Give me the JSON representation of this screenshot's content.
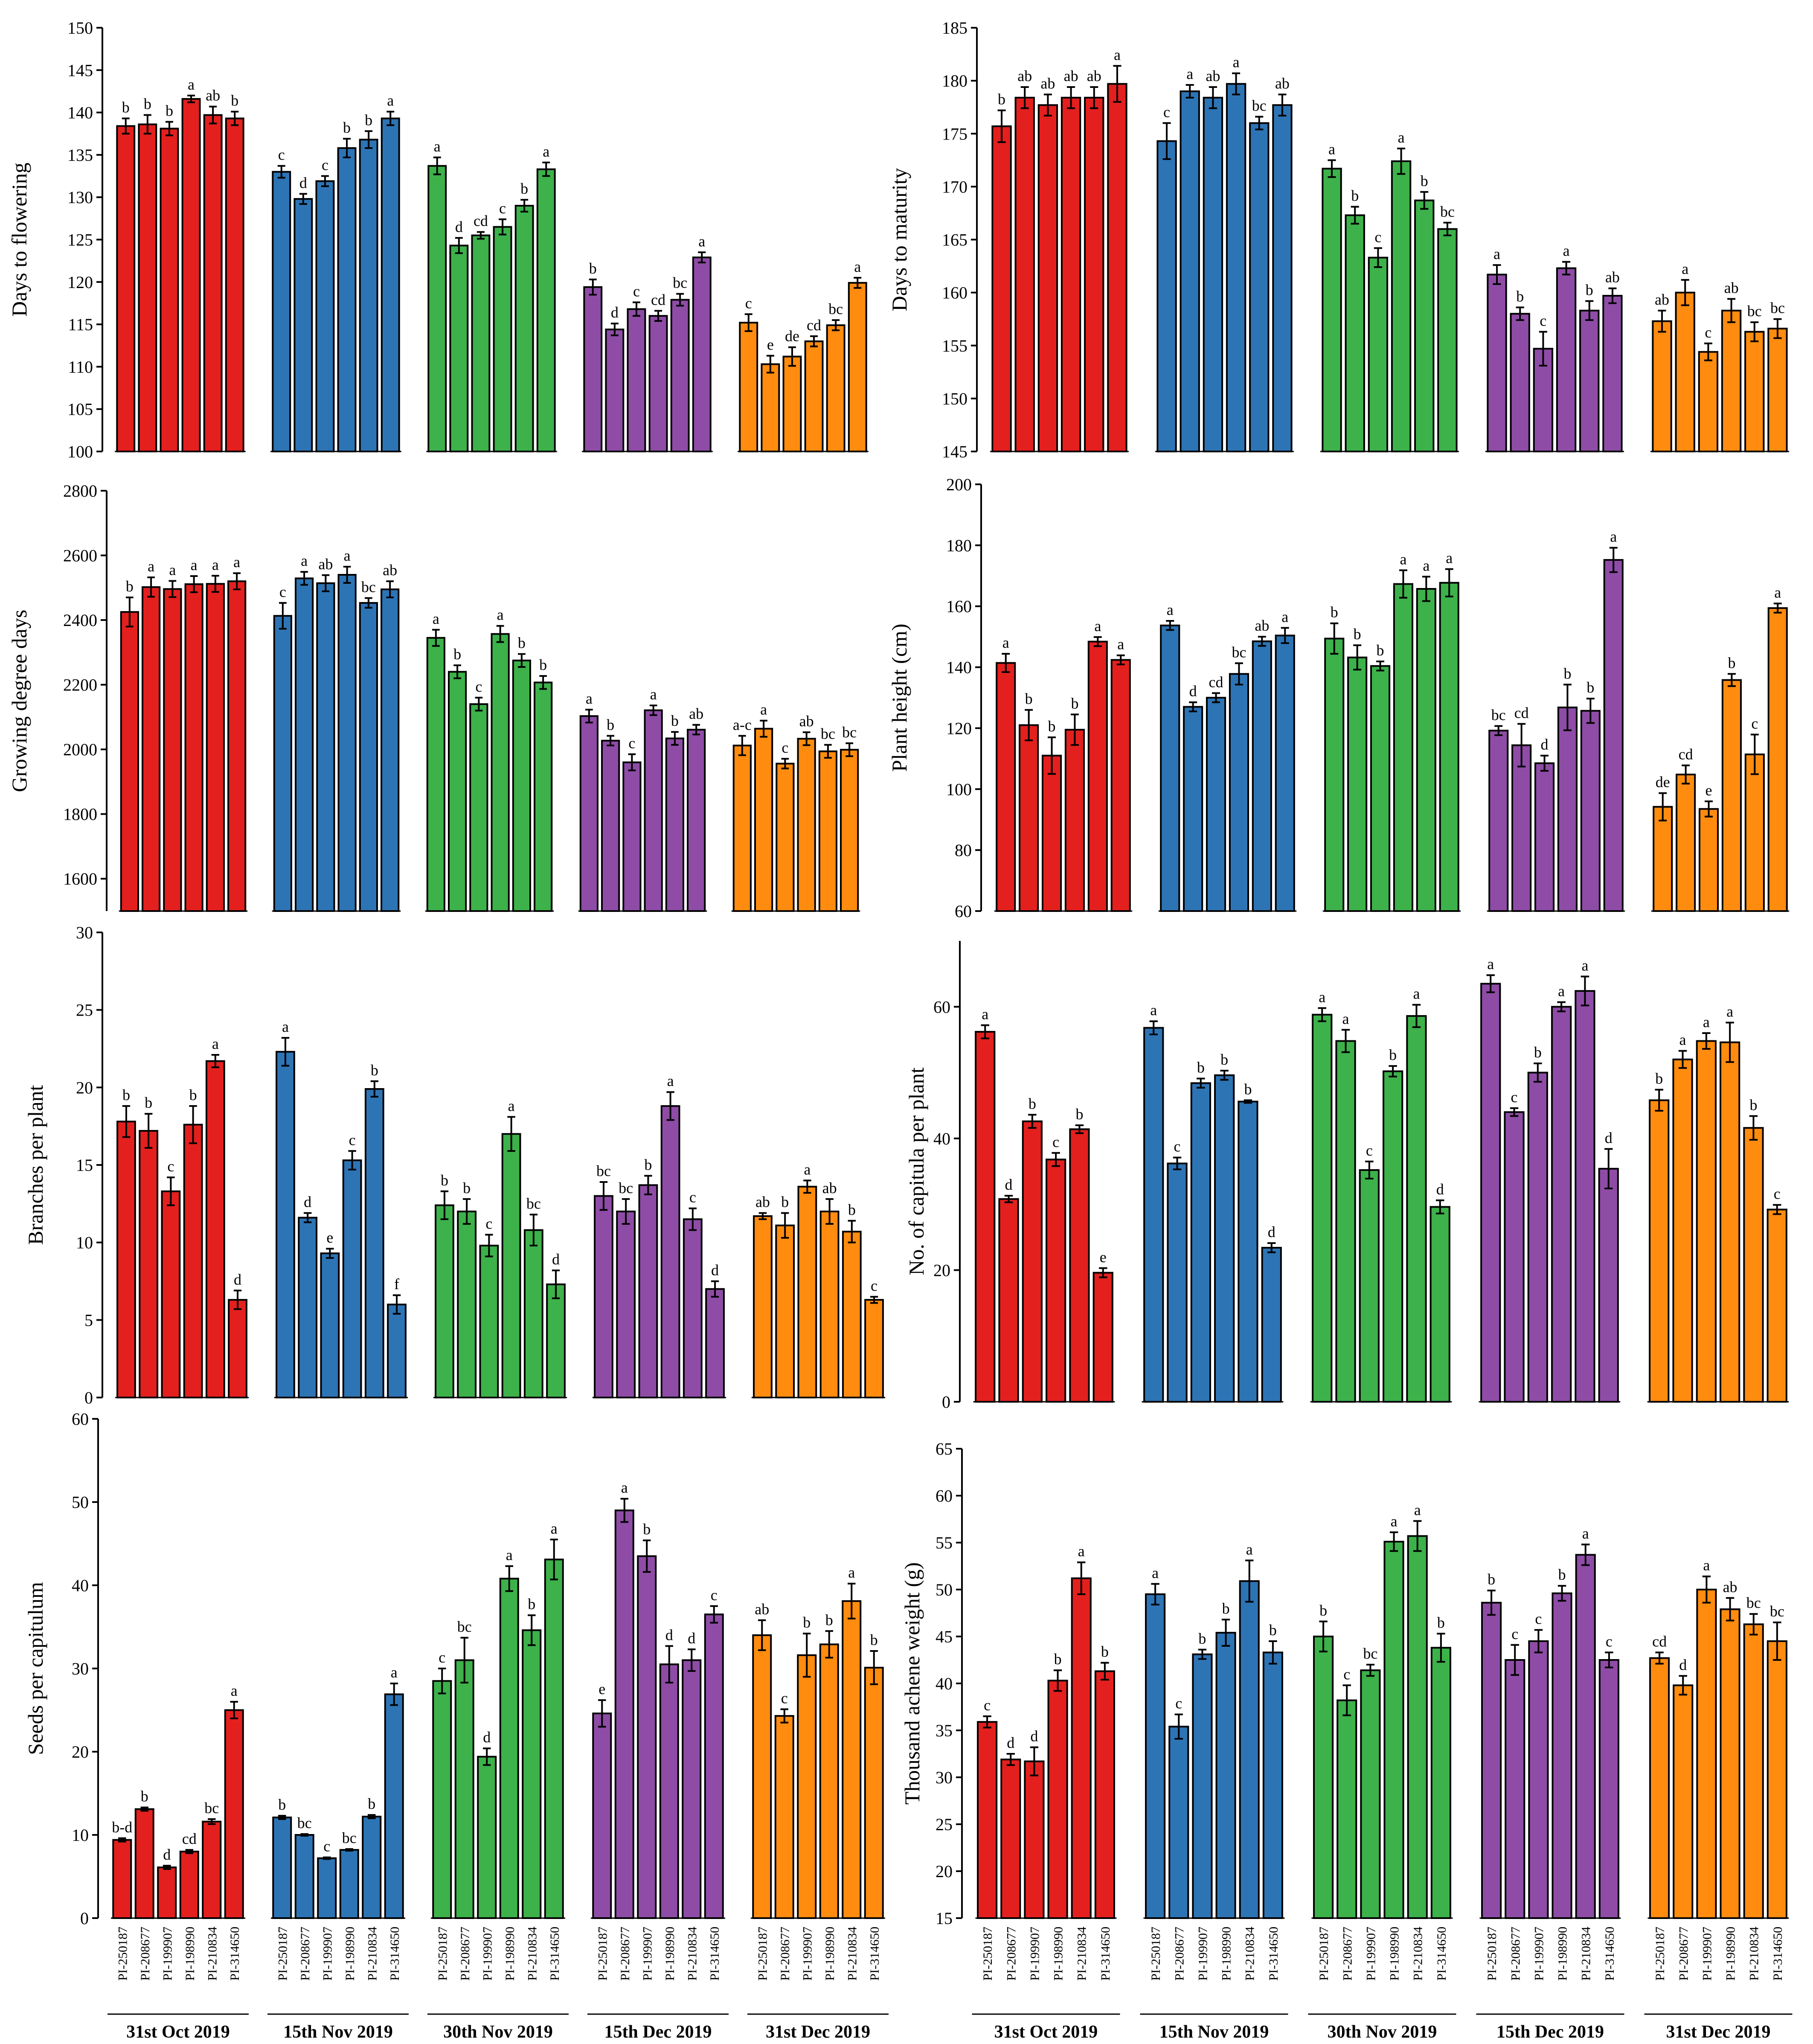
{
  "chart_data": [
    {
      "type": "bar",
      "ylabel": "Days to flowering",
      "ylim": [
        100,
        150
      ],
      "yticks": [
        100,
        105,
        110,
        115,
        120,
        125,
        130,
        135,
        140,
        145,
        150
      ],
      "sowing_dates": [
        "31st Oct 2019",
        "15th Nov 2019",
        "30th Nov 2019",
        "15th Dec 2019",
        "31st Dec 2019"
      ],
      "genotypes": [
        "PI-250187",
        "PI-208677",
        "PI-199907",
        "PI-198990",
        "PI-210834",
        "PI-314650"
      ],
      "values": [
        [
          138.4,
          138.6,
          138.1,
          141.6,
          139.7,
          139.3
        ],
        [
          133.0,
          129.8,
          131.9,
          135.8,
          136.8,
          139.3
        ],
        [
          133.7,
          124.3,
          125.5,
          126.5,
          129.0,
          133.3
        ],
        [
          119.4,
          114.4,
          116.8,
          116.0,
          117.9,
          122.9
        ],
        [
          115.2,
          110.3,
          111.2,
          113.0,
          114.9,
          119.9
        ]
      ],
      "errors": [
        [
          0.9,
          1.1,
          0.8,
          0.4,
          1.0,
          0.8
        ],
        [
          0.7,
          0.6,
          0.6,
          1.1,
          1.0,
          0.8
        ],
        [
          1.0,
          0.9,
          0.4,
          0.9,
          0.7,
          0.8
        ],
        [
          0.9,
          0.7,
          0.8,
          0.6,
          0.7,
          0.6
        ],
        [
          1.0,
          1.0,
          1.1,
          0.6,
          0.6,
          0.6
        ]
      ],
      "letters": [
        [
          "b",
          "b",
          "b",
          "a",
          "ab",
          "b"
        ],
        [
          "c",
          "d",
          "c",
          "b",
          "b",
          "a"
        ],
        [
          "a",
          "d",
          "cd",
          "c",
          "b",
          "a"
        ],
        [
          "b",
          "d",
          "c",
          "cd",
          "bc",
          "a"
        ],
        [
          "c",
          "e",
          "de",
          "cd",
          "bc",
          "a"
        ]
      ]
    },
    {
      "type": "bar",
      "ylabel": "Days to maturity",
      "ylim": [
        145,
        185
      ],
      "yticks": [
        145,
        150,
        155,
        160,
        165,
        170,
        175,
        180,
        185
      ],
      "sowing_dates": [
        "31st Oct 2019",
        "15th Nov 2019",
        "30th Nov 2019",
        "15th Dec 2019",
        "31st Dec 2019"
      ],
      "genotypes": [
        "PI-250187",
        "PI-208677",
        "PI-199907",
        "PI-198990",
        "PI-210834",
        "PI-314650"
      ],
      "values": [
        [
          175.7,
          178.4,
          177.7,
          178.4,
          178.4,
          179.7
        ],
        [
          174.3,
          179.0,
          178.4,
          179.7,
          176.0,
          177.7
        ],
        [
          171.7,
          167.3,
          163.3,
          172.4,
          168.7,
          166.0
        ],
        [
          161.7,
          158.0,
          154.7,
          162.3,
          158.3,
          159.7
        ],
        [
          157.3,
          160.0,
          154.4,
          158.3,
          156.3,
          156.6
        ]
      ],
      "errors": [
        [
          1.5,
          1.0,
          1.0,
          1.0,
          1.0,
          1.7
        ],
        [
          1.7,
          0.6,
          1.0,
          1.0,
          0.6,
          1.0
        ],
        [
          0.8,
          0.8,
          0.9,
          1.2,
          0.8,
          0.6
        ],
        [
          0.9,
          0.6,
          1.6,
          0.6,
          0.9,
          0.7
        ],
        [
          1.0,
          1.2,
          0.8,
          1.1,
          0.9,
          0.9
        ]
      ],
      "letters": [
        [
          "b",
          "ab",
          "ab",
          "ab",
          "ab",
          "a"
        ],
        [
          "c",
          "a",
          "ab",
          "a",
          "bc",
          "ab"
        ],
        [
          "a",
          "b",
          "c",
          "a",
          "b",
          "bc"
        ],
        [
          "a",
          "b",
          "c",
          "a",
          "b",
          "ab"
        ],
        [
          "ab",
          "a",
          "c",
          "ab",
          "bc",
          "bc"
        ]
      ]
    },
    {
      "type": "bar",
      "ylabel": "Growing degree days",
      "ylim": [
        1500,
        2800
      ],
      "yticks": [
        1600,
        1800,
        2000,
        2200,
        2400,
        2600,
        2800
      ],
      "sowing_dates": [
        "31st Oct 2019",
        "15th Nov 2019",
        "30th Nov 2019",
        "15th Dec 2019",
        "31st Dec 2019"
      ],
      "genotypes": [
        "PI-250187",
        "PI-208677",
        "PI-199907",
        "PI-198990",
        "PI-210834",
        "PI-314650"
      ],
      "values": [
        [
          2425,
          2502,
          2496,
          2511,
          2512,
          2520
        ],
        [
          2413,
          2529,
          2514,
          2540,
          2453,
          2495
        ],
        [
          2345,
          2240,
          2140,
          2357,
          2275,
          2207
        ],
        [
          2103,
          2027,
          1960,
          2121,
          2034,
          2061
        ],
        [
          2012,
          2064,
          1956,
          2033,
          1994,
          1999
        ]
      ],
      "errors": [
        [
          45,
          30,
          25,
          25,
          25,
          25
        ],
        [
          40,
          20,
          25,
          25,
          15,
          25
        ],
        [
          25,
          20,
          20,
          25,
          20,
          20
        ],
        [
          20,
          15,
          25,
          15,
          20,
          15
        ],
        [
          30,
          25,
          15,
          20,
          20,
          20
        ]
      ],
      "letters": [
        [
          "b",
          "a",
          "a",
          "a",
          "a",
          "a"
        ],
        [
          "c",
          "a",
          "ab",
          "a",
          "bc",
          "ab"
        ],
        [
          "a",
          "b",
          "c",
          "a",
          "b",
          "b"
        ],
        [
          "a",
          "b",
          "c",
          "a",
          "b",
          "ab"
        ],
        [
          "a-c",
          "a",
          "c",
          "ab",
          "bc",
          "bc"
        ]
      ]
    },
    {
      "type": "bar",
      "ylabel": "Plant height (cm)",
      "ylim": [
        60,
        200
      ],
      "yticks": [
        60,
        80,
        100,
        120,
        140,
        160,
        180,
        200
      ],
      "sowing_dates": [
        "31st Oct 2019",
        "15th Nov 2019",
        "30th Nov 2019",
        "15th Dec 2019",
        "31st Dec 2019"
      ],
      "genotypes": [
        "PI-250187",
        "PI-208677",
        "PI-199907",
        "PI-198990",
        "PI-210834",
        "PI-314650"
      ],
      "values": [
        [
          141.4,
          121.0,
          111.0,
          119.5,
          148.4,
          142.4
        ],
        [
          153.7,
          127.0,
          130.0,
          137.8,
          148.5,
          150.4
        ],
        [
          149.4,
          143.2,
          140.4,
          167.3,
          165.7,
          167.7
        ],
        [
          119.2,
          114.4,
          108.5,
          126.8,
          125.7,
          175.2
        ],
        [
          94.2,
          104.8,
          93.5,
          135.8,
          111.4,
          159.4
        ]
      ],
      "errors": [
        [
          3,
          5,
          6,
          5,
          1.5,
          1.5
        ],
        [
          1.5,
          1.5,
          1.5,
          3.5,
          1.5,
          2.5
        ],
        [
          5,
          4,
          1.5,
          4.5,
          4,
          4.5
        ],
        [
          1.5,
          7,
          2.5,
          7.5,
          4,
          4
        ],
        [
          4.5,
          3,
          2.5,
          2,
          6.5,
          1.5
        ]
      ],
      "letters": [
        [
          "a",
          "b",
          "b",
          "b",
          "a",
          "a"
        ],
        [
          "a",
          "d",
          "cd",
          "bc",
          "ab",
          "a"
        ],
        [
          "b",
          "b",
          "b",
          "a",
          "a",
          "a"
        ],
        [
          "bc",
          "cd",
          "d",
          "b",
          "b",
          "a"
        ],
        [
          "de",
          "cd",
          "e",
          "b",
          "c",
          "a"
        ]
      ]
    },
    {
      "type": "bar",
      "ylabel": "Branches per plant",
      "ylim": [
        0,
        30
      ],
      "yticks": [
        0,
        5,
        10,
        15,
        20,
        25,
        30
      ],
      "sowing_dates": [
        "31st Oct 2019",
        "15th Nov 2019",
        "30th Nov 2019",
        "15th Dec 2019",
        "31st Dec 2019"
      ],
      "genotypes": [
        "PI-250187",
        "PI-208677",
        "PI-199907",
        "PI-198990",
        "PI-210834",
        "PI-314650"
      ],
      "values": [
        [
          17.8,
          17.2,
          13.3,
          17.6,
          21.7,
          6.3
        ],
        [
          22.3,
          11.6,
          9.3,
          15.3,
          19.9,
          6.0
        ],
        [
          12.4,
          12.0,
          9.8,
          17.0,
          10.8,
          7.3
        ],
        [
          13.0,
          12.0,
          13.7,
          18.8,
          11.5,
          7.0
        ],
        [
          11.7,
          11.1,
          13.6,
          12.0,
          10.7,
          6.3
        ]
      ],
      "errors": [
        [
          1.0,
          1.1,
          0.9,
          1.2,
          0.4,
          0.6
        ],
        [
          0.9,
          0.3,
          0.3,
          0.6,
          0.5,
          0.6
        ],
        [
          0.9,
          0.8,
          0.7,
          1.1,
          1.0,
          0.9
        ],
        [
          0.9,
          0.8,
          0.6,
          0.9,
          0.7,
          0.5
        ],
        [
          0.2,
          0.8,
          0.4,
          0.8,
          0.7,
          0.2
        ]
      ],
      "letters": [
        [
          "b",
          "b",
          "c",
          "b",
          "a",
          "d"
        ],
        [
          "a",
          "d",
          "e",
          "c",
          "b",
          "f"
        ],
        [
          "b",
          "b",
          "c",
          "a",
          "bc",
          "d"
        ],
        [
          "bc",
          "bc",
          "b",
          "a",
          "c",
          "d"
        ],
        [
          "ab",
          "b",
          "a",
          "ab",
          "b",
          "c"
        ]
      ]
    },
    {
      "type": "bar",
      "ylabel": "No. of capitula per plant",
      "ylim": [
        0,
        70
      ],
      "yticks": [
        0,
        20,
        40,
        60
      ],
      "sowing_dates": [
        "31st Oct 2019",
        "15th Nov 2019",
        "30th Nov 2019",
        "15th Dec 2019",
        "31st Dec 2019"
      ],
      "genotypes": [
        "PI-250187",
        "PI-208677",
        "PI-199907",
        "PI-198990",
        "PI-210834",
        "PI-314650"
      ],
      "values": [
        [
          56.2,
          30.8,
          42.6,
          36.8,
          41.4,
          19.6
        ],
        [
          56.8,
          36.2,
          48.4,
          49.6,
          45.6,
          23.4
        ],
        [
          58.8,
          54.8,
          35.2,
          50.2,
          58.6,
          29.6
        ],
        [
          63.5,
          44.0,
          50.0,
          60.0,
          62.4,
          35.4
        ],
        [
          45.8,
          52.0,
          54.8,
          54.6,
          41.6,
          29.2
        ]
      ],
      "errors": [
        [
          1.0,
          0.5,
          1.0,
          1.0,
          0.6,
          0.7
        ],
        [
          1.0,
          0.9,
          0.7,
          0.7,
          0.2,
          0.7
        ],
        [
          1.0,
          1.7,
          1.3,
          0.8,
          1.7,
          1.0
        ],
        [
          1.3,
          0.6,
          1.4,
          0.7,
          2.2,
          3.0
        ],
        [
          1.6,
          1.3,
          1.2,
          3.0,
          1.8,
          0.7
        ]
      ],
      "letters": [
        [
          "a",
          "d",
          "b",
          "c",
          "b",
          "e"
        ],
        [
          "a",
          "c",
          "b",
          "b",
          "b",
          "d"
        ],
        [
          "a",
          "a",
          "c",
          "b",
          "a",
          "d"
        ],
        [
          "a",
          "c",
          "b",
          "a",
          "a",
          "d"
        ],
        [
          "b",
          "a",
          "a",
          "a",
          "b",
          "c"
        ]
      ]
    },
    {
      "type": "bar",
      "ylabel": "Seeds per capitulum",
      "ylim": [
        0,
        60
      ],
      "yticks": [
        0,
        10,
        20,
        30,
        40,
        50,
        60
      ],
      "sowing_dates": [
        "31st Oct 2019",
        "15th Nov 2019",
        "30th Nov 2019",
        "15th Dec 2019",
        "31st Dec 2019"
      ],
      "genotypes": [
        "PI-250187",
        "PI-208677",
        "PI-199907",
        "PI-198990",
        "PI-210834",
        "PI-314650"
      ],
      "values": [
        [
          9.4,
          13.1,
          6.1,
          8.0,
          11.6,
          25.0
        ],
        [
          12.1,
          10.0,
          7.2,
          8.2,
          12.2,
          26.9
        ],
        [
          28.5,
          31.0,
          19.4,
          40.8,
          34.6,
          43.1
        ],
        [
          24.6,
          49.0,
          43.5,
          30.5,
          31.0,
          36.5
        ],
        [
          34.0,
          24.3,
          31.6,
          32.9,
          38.1,
          30.1
        ]
      ],
      "errors": [
        [
          0.2,
          0.2,
          0.2,
          0.2,
          0.3,
          1.0
        ],
        [
          0.2,
          0.1,
          0.1,
          0.1,
          0.2,
          1.3
        ],
        [
          1.5,
          2.7,
          1.0,
          1.5,
          1.8,
          2.4
        ],
        [
          1.6,
          1.4,
          1.9,
          2.2,
          1.3,
          1.0
        ],
        [
          1.8,
          0.8,
          2.6,
          1.6,
          2.1,
          2.0
        ]
      ],
      "letters": [
        [
          "b-d",
          "b",
          "d",
          "cd",
          "bc",
          "a"
        ],
        [
          "b",
          "bc",
          "c",
          "bc",
          "b",
          "a"
        ],
        [
          "c",
          "bc",
          "d",
          "a",
          "b",
          "a"
        ],
        [
          "e",
          "a",
          "b",
          "d",
          "d",
          "c"
        ],
        [
          "ab",
          "c",
          "b",
          "b",
          "a",
          "b"
        ]
      ]
    },
    {
      "type": "bar",
      "ylabel": "Thousand achene weight (g)",
      "ylim": [
        15,
        65
      ],
      "yticks": [
        15,
        20,
        25,
        30,
        35,
        40,
        45,
        50,
        55,
        60,
        65
      ],
      "sowing_dates": [
        "31st Oct 2019",
        "15th Nov 2019",
        "30th Nov 2019",
        "15th Dec 2019",
        "31st Dec 2019"
      ],
      "genotypes": [
        "PI-250187",
        "PI-208677",
        "PI-199907",
        "PI-198990",
        "PI-210834",
        "PI-314650"
      ],
      "values": [
        [
          35.9,
          31.9,
          31.7,
          40.3,
          51.2,
          41.3
        ],
        [
          49.5,
          35.4,
          43.1,
          45.4,
          50.9,
          43.3
        ],
        [
          45.0,
          38.2,
          41.4,
          55.1,
          55.7,
          43.8
        ],
        [
          48.6,
          42.5,
          44.5,
          49.6,
          53.7,
          42.5
        ],
        [
          42.7,
          39.8,
          50.0,
          47.9,
          46.3,
          44.5
        ]
      ],
      "errors": [
        [
          0.6,
          0.6,
          1.5,
          1.1,
          1.7,
          0.9
        ],
        [
          1.1,
          1.3,
          0.5,
          1.4,
          2.2,
          1.2
        ],
        [
          1.6,
          1.6,
          0.6,
          1.0,
          1.6,
          1.5
        ],
        [
          1.3,
          1.6,
          1.2,
          0.8,
          1.1,
          0.8
        ],
        [
          0.6,
          1.0,
          1.4,
          1.2,
          1.1,
          2.0
        ]
      ],
      "letters": [
        [
          "c",
          "d",
          "d",
          "b",
          "a",
          "b"
        ],
        [
          "a",
          "c",
          "b",
          "b",
          "a",
          "b"
        ],
        [
          "b",
          "c",
          "bc",
          "a",
          "a",
          "b"
        ],
        [
          "b",
          "c",
          "c",
          "b",
          "a",
          "c"
        ],
        [
          "cd",
          "d",
          "a",
          "ab",
          "bc",
          "bc"
        ]
      ]
    }
  ],
  "colors": {
    "groups": [
      "#e3201e",
      "#2d74b5",
      "#3db14a",
      "#8e4ca6",
      "#ff8b0f"
    ],
    "axis": "#000000"
  }
}
